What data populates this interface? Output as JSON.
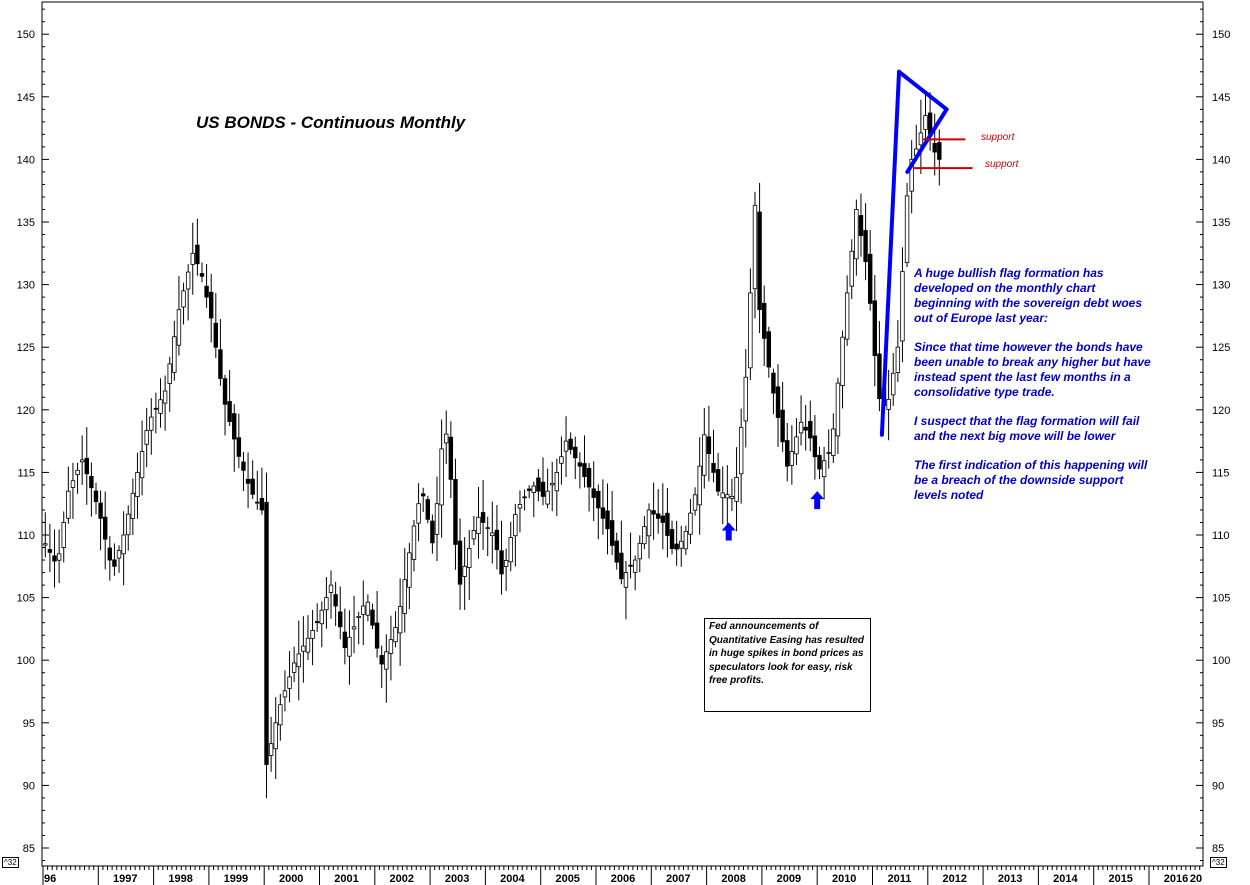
{
  "chart_data": {
    "type": "candlestick",
    "title": "US BONDS - Continuous Monthly",
    "ylim": [
      84,
      152
    ],
    "y_ticks": [
      85,
      90,
      95,
      100,
      105,
      110,
      115,
      120,
      125,
      130,
      135,
      140,
      145,
      150
    ],
    "x_labels": [
      "96",
      "1997",
      "1998",
      "1999",
      "2000",
      "2001",
      "2002",
      "2003",
      "2004",
      "2005",
      "2006",
      "2007",
      "2008",
      "2009",
      "2010",
      "2011",
      "2012",
      "2013",
      "2014",
      "2015",
      "2016",
      "20"
    ],
    "unit_tag": "^32",
    "colors": {
      "line": "#0000ff",
      "support": "#cc0000",
      "text_blue": "#0000cc",
      "bars": "#000000"
    },
    "price_path": [
      [
        1996.0,
        110.0
      ],
      [
        1996.3,
        107.5
      ],
      [
        1996.5,
        113.5
      ],
      [
        1996.75,
        116.0
      ],
      [
        1997.05,
        112.0
      ],
      [
        1997.3,
        107.0
      ],
      [
        1997.5,
        110.0
      ],
      [
        1997.75,
        115.0
      ],
      [
        1997.95,
        119.0
      ],
      [
        1998.25,
        121.5
      ],
      [
        1998.5,
        128.0
      ],
      [
        1998.75,
        132.5
      ],
      [
        1998.9,
        131.0
      ],
      [
        1999.1,
        127.0
      ],
      [
        1999.3,
        121.0
      ],
      [
        1999.6,
        116.0
      ],
      [
        1999.8,
        113.5
      ],
      [
        2000.0,
        112.0
      ],
      [
        2000.05,
        91.0
      ],
      [
        2000.3,
        96.0
      ],
      [
        2000.6,
        100.0
      ],
      [
        2001.0,
        103.0
      ],
      [
        2001.25,
        106.0
      ],
      [
        2001.5,
        101.0
      ],
      [
        2001.9,
        105.0
      ],
      [
        2002.15,
        99.5
      ],
      [
        2002.45,
        103.0
      ],
      [
        2002.8,
        112.0
      ],
      [
        2002.9,
        113.5
      ],
      [
        2003.1,
        109.0
      ],
      [
        2003.3,
        119.5
      ],
      [
        2003.45,
        113.0
      ],
      [
        2003.55,
        105.5
      ],
      [
        2003.9,
        111.5
      ],
      [
        2004.2,
        110.0
      ],
      [
        2004.35,
        106.5
      ],
      [
        2004.6,
        112.0
      ],
      [
        2004.9,
        114.0
      ],
      [
        2005.1,
        113.0
      ],
      [
        2005.3,
        114.5
      ],
      [
        2005.5,
        117.5
      ],
      [
        2005.75,
        115.5
      ],
      [
        2006.0,
        113.0
      ],
      [
        2006.25,
        110.5
      ],
      [
        2006.5,
        106.5
      ],
      [
        2006.75,
        108.0
      ],
      [
        2007.0,
        112.0
      ],
      [
        2007.25,
        111.0
      ],
      [
        2007.45,
        108.5
      ],
      [
        2007.65,
        110.0
      ],
      [
        2007.85,
        113.5
      ],
      [
        2008.0,
        118.0
      ],
      [
        2008.25,
        113.5
      ],
      [
        2008.55,
        113.0
      ],
      [
        2008.8,
        125.0
      ],
      [
        2008.9,
        138.0
      ],
      [
        2009.0,
        128.0
      ],
      [
        2009.2,
        122.5
      ],
      [
        2009.5,
        115.5
      ],
      [
        2009.75,
        119.0
      ],
      [
        2009.95,
        117.5
      ],
      [
        2010.05,
        115.0
      ],
      [
        2010.3,
        117.0
      ],
      [
        2010.55,
        128.0
      ],
      [
        2010.75,
        136.0
      ],
      [
        2010.95,
        131.0
      ],
      [
        2011.15,
        121.0
      ],
      [
        2011.3,
        120.0
      ],
      [
        2011.5,
        125.0
      ],
      [
        2011.7,
        139.5
      ],
      [
        2011.85,
        141.0
      ],
      [
        2012.0,
        143.5
      ],
      [
        2012.2,
        140.0
      ]
    ],
    "flag_lines": [
      {
        "from": [
          2011.17,
          118
        ],
        "to": [
          2011.48,
          147
        ]
      },
      {
        "from": [
          2011.48,
          147
        ],
        "to": [
          2012.34,
          144
        ]
      },
      {
        "from": [
          2011.63,
          139
        ],
        "to": [
          2012.34,
          144
        ]
      }
    ],
    "support_levels": [
      {
        "y": 141.6,
        "x_from": 2011.9,
        "x_to": 2012.68,
        "label": "support"
      },
      {
        "y": 139.3,
        "x_from": 2011.73,
        "x_to": 2012.81,
        "label": "support"
      }
    ],
    "up_arrows": [
      {
        "x": 2008.4,
        "y": 111.0
      },
      {
        "x": 2010.0,
        "y": 113.5
      }
    ]
  },
  "commentary": {
    "p1": "A huge bullish flag formation has developed on the monthly chart beginning with the sovereign debt woes out of Europe last year:",
    "p2": "Since that time however the bonds have been unable to break any higher but have instead spent the last few months in a consolidative type trade.",
    "p3": "I suspect that the flag formation will fail and the next big move will be lower",
    "p4": "The first indication of this happening will be a breach of the downside support levels noted"
  },
  "fed_note": "Fed announcements of Quantitative Easing has resulted in huge spikes in bond prices as speculators look for easy, risk free profits."
}
